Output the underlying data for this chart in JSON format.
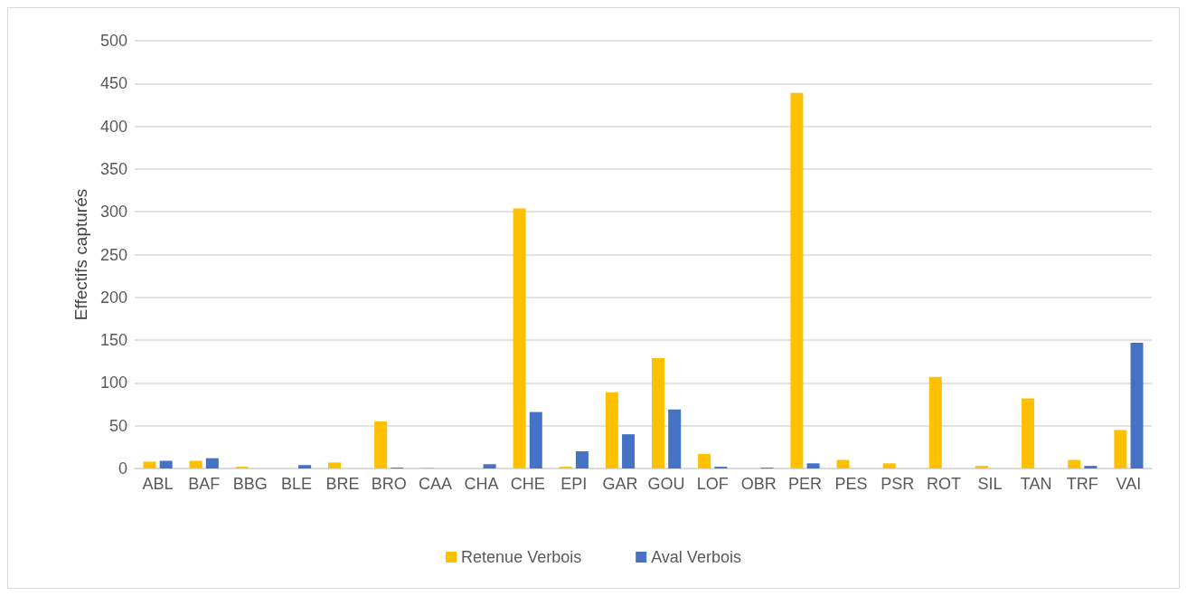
{
  "chart_data": {
    "type": "bar",
    "ylabel": "Effectifs capturés",
    "categories": [
      "ABL",
      "BAF",
      "BBG",
      "BLE",
      "BRE",
      "BRO",
      "CAA",
      "CHA",
      "CHE",
      "EPI",
      "GAR",
      "GOU",
      "LOF",
      "OBR",
      "PER",
      "PES",
      "PSR",
      "ROT",
      "SIL",
      "TAN",
      "TRF",
      "VAI"
    ],
    "series": [
      {
        "name": "Retenue Verbois",
        "color": "#ffc000",
        "values": [
          8,
          9,
          2,
          0,
          7,
          55,
          1,
          0,
          304,
          2,
          89,
          129,
          17,
          0,
          439,
          10,
          6,
          107,
          3,
          82,
          10,
          45
        ]
      },
      {
        "name": "Aval Verbois",
        "color": "#4472c4",
        "values": [
          9,
          12,
          0,
          4,
          0,
          1,
          0,
          5,
          66,
          20,
          40,
          69,
          2,
          1,
          6,
          0,
          0,
          0,
          0,
          0,
          3,
          147
        ]
      }
    ],
    "ylim": [
      0,
      500
    ],
    "yticks": [
      0,
      50,
      100,
      150,
      200,
      250,
      300,
      350,
      400,
      450,
      500
    ],
    "grid": "y",
    "legend": "bottom"
  }
}
